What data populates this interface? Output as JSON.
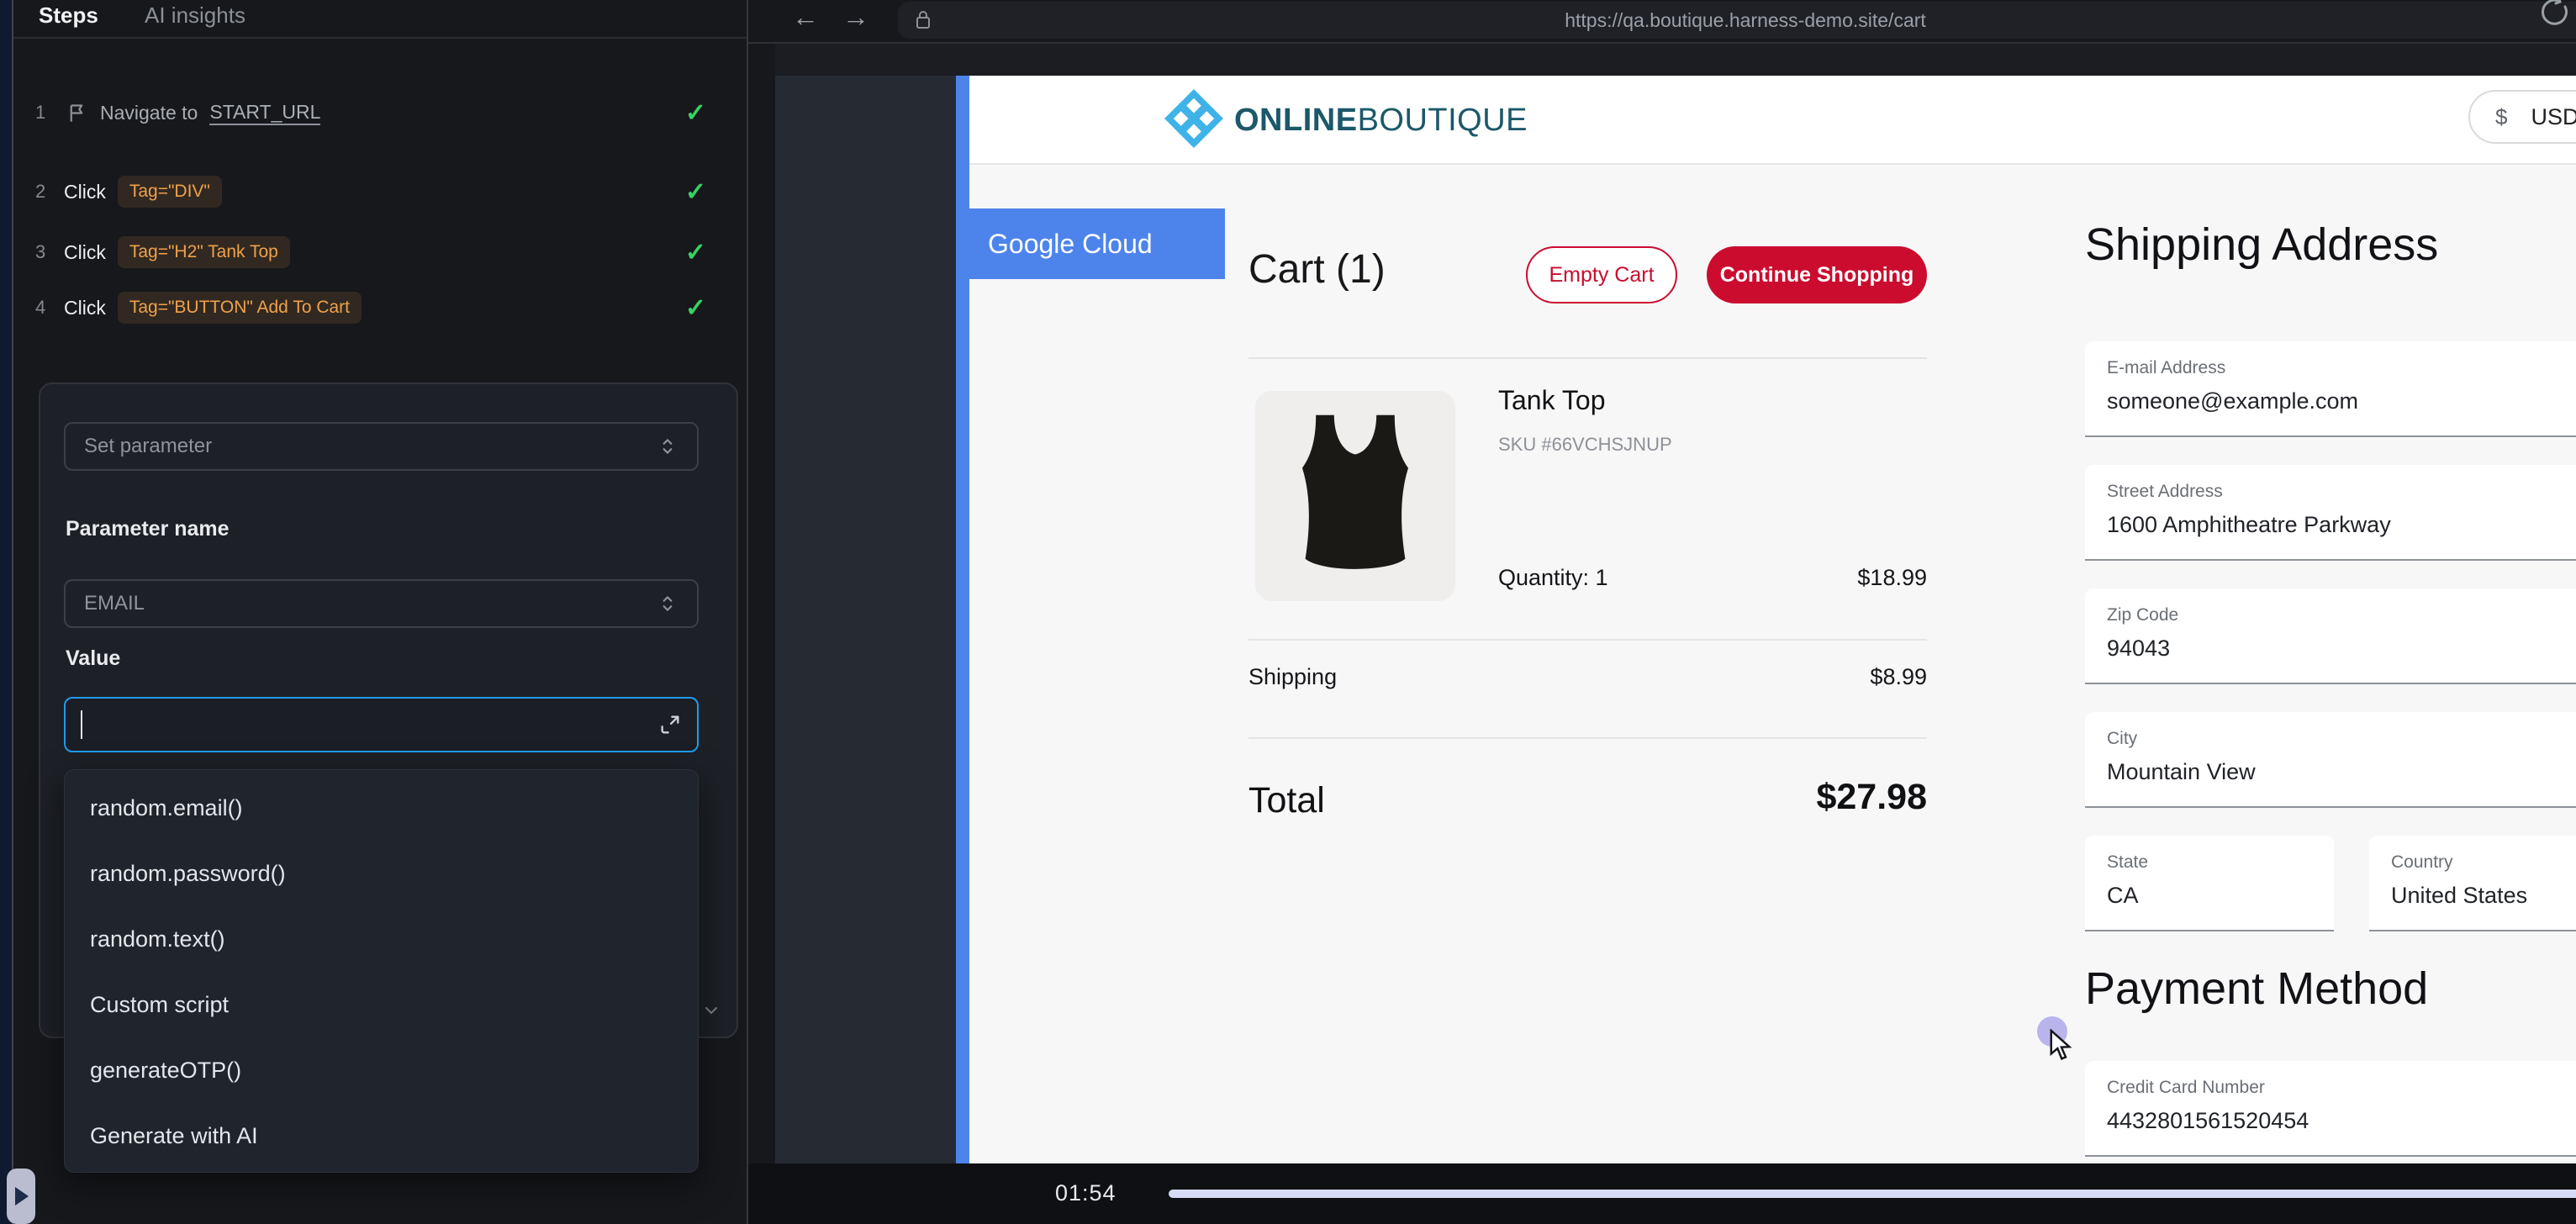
{
  "sidebar": {
    "tabs": [
      {
        "label": "Steps",
        "active": true
      },
      {
        "label": "AI insights",
        "active": false
      }
    ],
    "steps": [
      {
        "num": "1",
        "flag": true,
        "action": "Navigate to",
        "link": "START_URL",
        "badge": null,
        "status": "passed"
      },
      {
        "num": "2",
        "flag": false,
        "action": "Click",
        "link": null,
        "badge": "Tag=\"DIV\"",
        "status": "passed"
      },
      {
        "num": "3",
        "flag": false,
        "action": "Click",
        "link": null,
        "badge": "Tag=\"H2\" Tank Top",
        "status": "passed"
      },
      {
        "num": "4",
        "flag": false,
        "action": "Click",
        "link": null,
        "badge": "Tag=\"BUTTON\" Add To Cart",
        "status": "passed"
      }
    ],
    "parameter_panel": {
      "set_parameter_value": "Set parameter",
      "parameter_name_label": "Parameter name",
      "parameter_name_value": "EMAIL",
      "value_label": "Value",
      "value_input": "",
      "suggestions": [
        "random.email()",
        "random.password()",
        "random.text()",
        "Custom script",
        "generateOTP()",
        "Generate with AI"
      ]
    }
  },
  "browser": {
    "url": "https://qa.boutique.harness-demo.site/cart",
    "page": {
      "ribbon_label": "Google Cloud",
      "brand_bold": "ONLINE",
      "brand_light": "BOUTIQUE",
      "currency_symbol": "$",
      "currency_code": "USD",
      "cart": {
        "title": "Cart (1)",
        "empty_cart_label": "Empty Cart",
        "continue_shopping_label": "Continue Shopping",
        "item_name": "Tank Top",
        "item_sku": "SKU #66VCHSJNUP",
        "item_quantity": "Quantity: 1",
        "item_price": "$18.99",
        "shipping_label": "Shipping",
        "shipping_value": "$8.99",
        "total_label": "Total",
        "total_value": "$27.98"
      },
      "shipping_address": {
        "title": "Shipping Address",
        "fields": [
          {
            "label": "E-mail Address",
            "value": "someone@example.com",
            "width": "full"
          },
          {
            "label": "Street Address",
            "value": "1600 Amphitheatre Parkway",
            "width": "full"
          },
          {
            "label": "Zip Code",
            "value": "94043",
            "width": "full"
          },
          {
            "label": "City",
            "value": "Mountain View",
            "width": "full"
          },
          {
            "label": "State",
            "value": "CA",
            "width": "half"
          },
          {
            "label": "Country",
            "value": "United States",
            "width": "half"
          }
        ]
      },
      "payment": {
        "title": "Payment Method",
        "fields": [
          {
            "label": "Credit Card Number",
            "value": "4432801561520454",
            "width": "full"
          }
        ]
      }
    }
  },
  "timeline": {
    "time": "01:54"
  },
  "colors": {
    "accent_blue": "#1e9bf0",
    "google_blue": "#4d84ec",
    "crimson": "#cb0c2e",
    "check_green": "#38d263",
    "badge_orange": "#f0a14b",
    "progress_lavender": "#d8dbf5",
    "brand_teal": "#1b586a"
  }
}
